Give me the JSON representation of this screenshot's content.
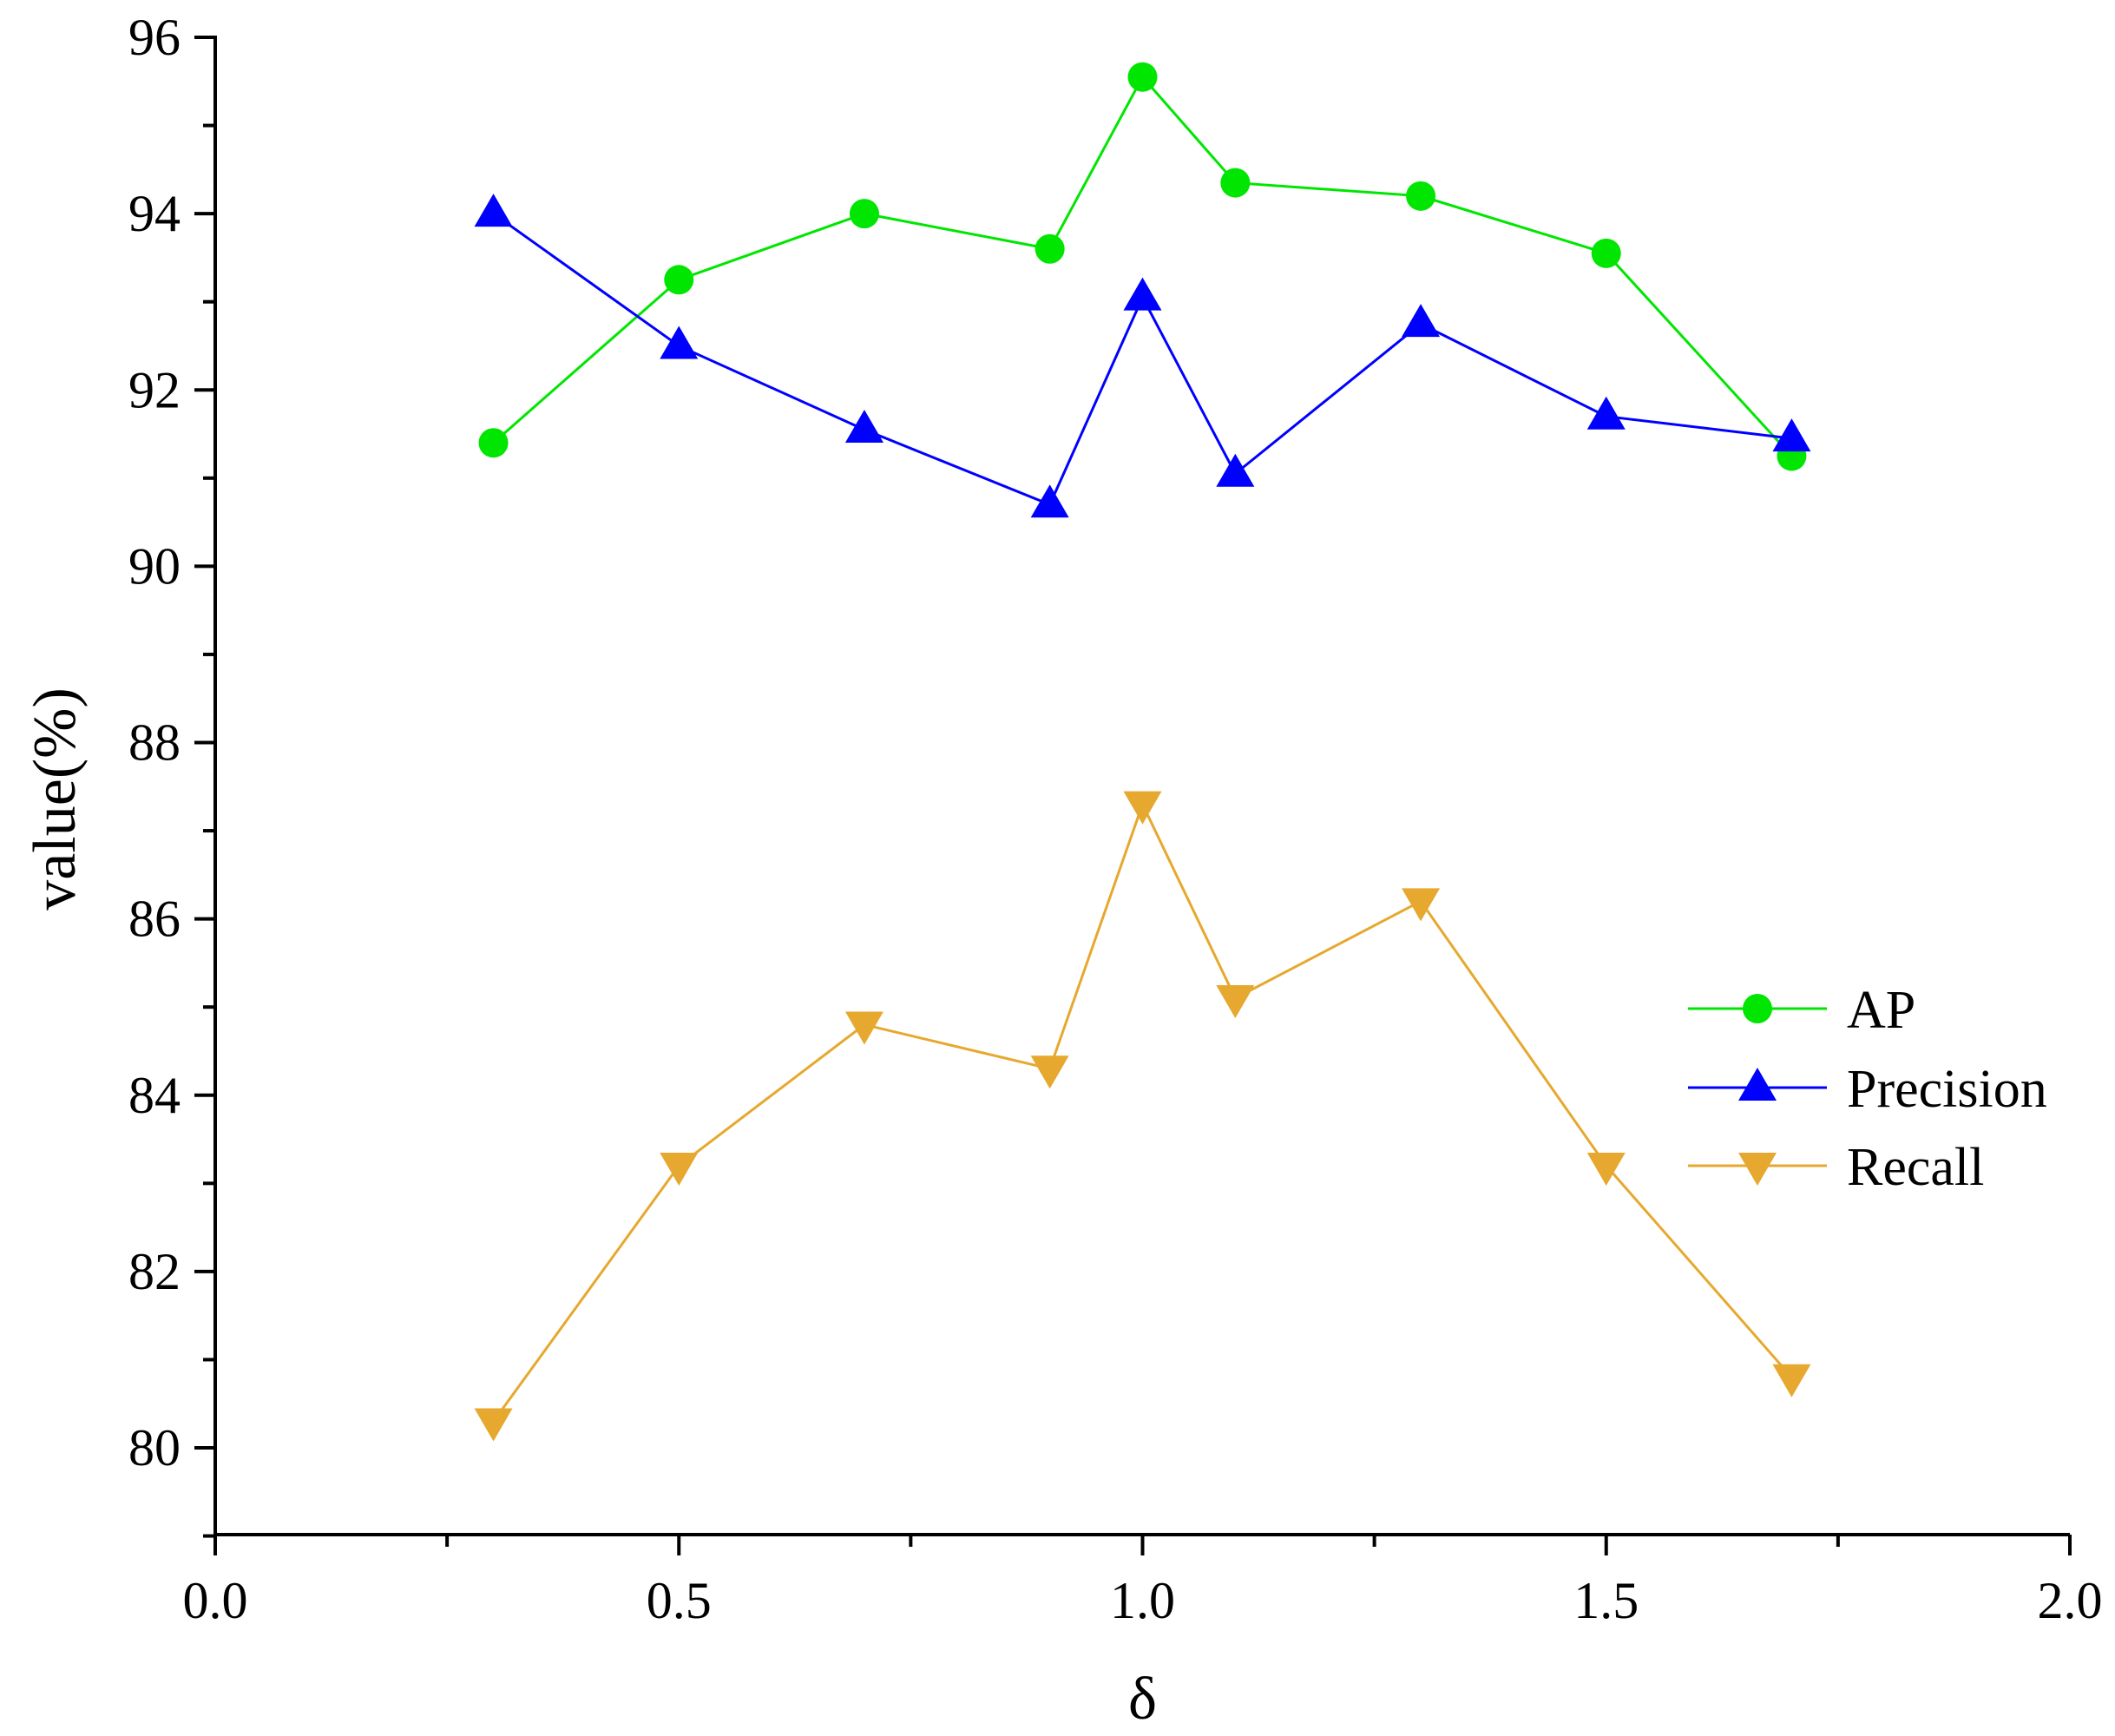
{
  "chart_data": {
    "type": "line",
    "xlabel": "δ",
    "ylabel": "value(%)",
    "xlim": [
      0.0,
      2.0
    ],
    "ylim": [
      79,
      96
    ],
    "x_ticks": [
      "0.0",
      "0.5",
      "1.0",
      "1.5",
      "2.0"
    ],
    "y_ticks": [
      "80",
      "82",
      "84",
      "86",
      "88",
      "90",
      "92",
      "94",
      "96"
    ],
    "x": [
      0.3,
      0.5,
      0.7,
      0.9,
      1.0,
      1.1,
      1.3,
      1.5,
      1.7
    ],
    "series": [
      {
        "name": "AP",
        "marker": "circle",
        "color": "#00e600",
        "values": [
          91.4,
          93.25,
          94.0,
          93.6,
          95.55,
          94.35,
          94.2,
          93.55,
          91.25
        ]
      },
      {
        "name": "Precision",
        "marker": "triangle-up",
        "color": "#0000ff",
        "values": [
          94.0,
          92.5,
          91.55,
          90.7,
          93.05,
          91.05,
          92.75,
          91.7,
          91.45
        ]
      },
      {
        "name": "Recall",
        "marker": "triangle-down",
        "color": "#e6a82e",
        "values": [
          80.3,
          83.2,
          84.8,
          84.3,
          87.3,
          85.1,
          86.2,
          83.2,
          80.8
        ]
      }
    ],
    "legend_position": "right",
    "grid": false
  }
}
